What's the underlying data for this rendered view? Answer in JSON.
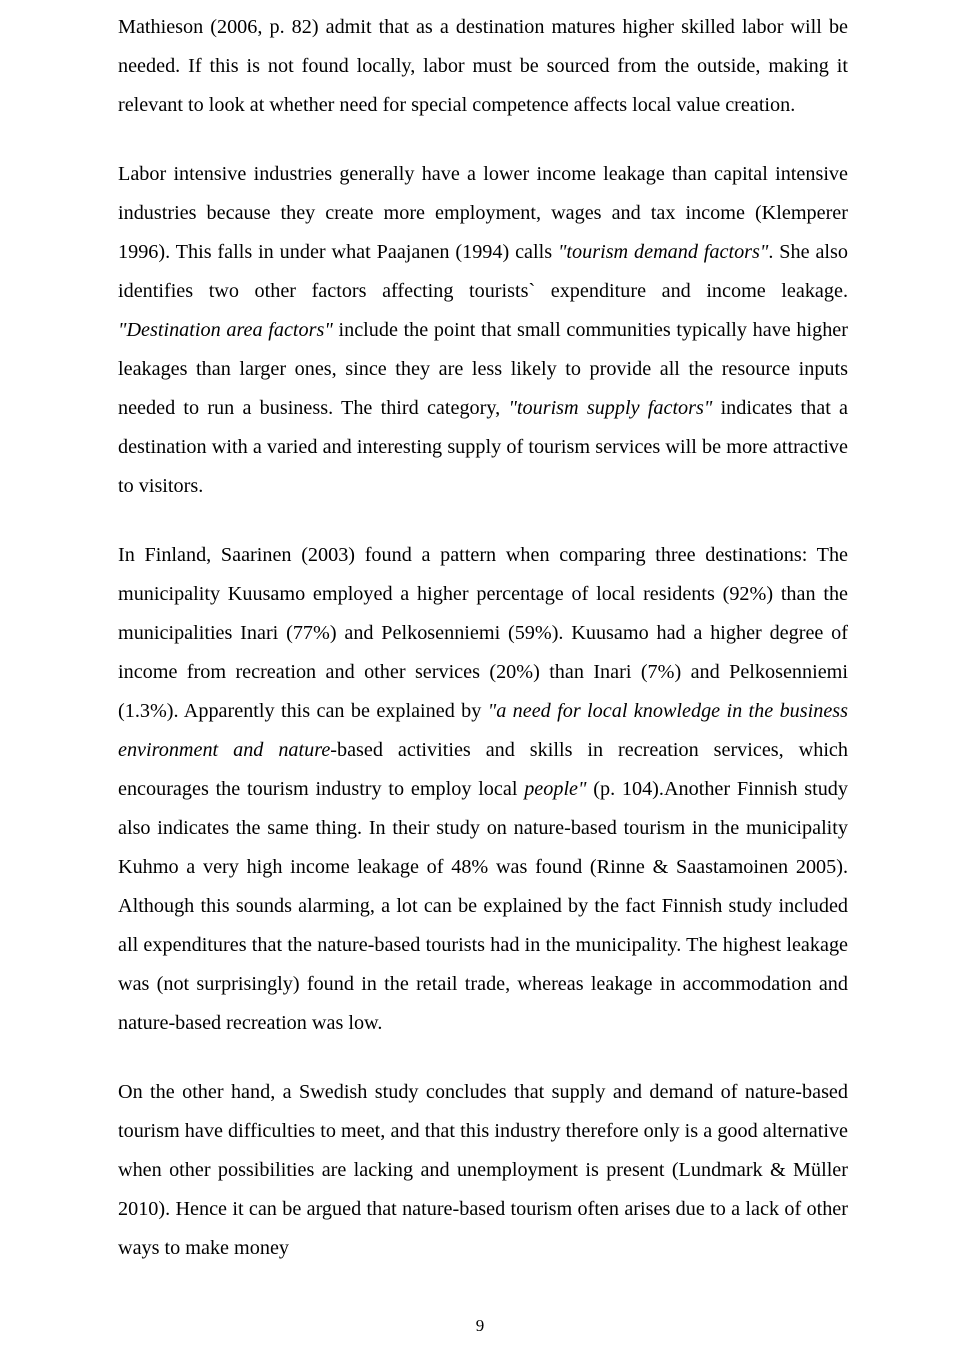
{
  "page": {
    "background_color": "#ffffff",
    "text_color": "#000000",
    "font_family": "Times New Roman",
    "body_font_size_pt": 15,
    "line_height": 1.93,
    "page_number": "9"
  },
  "paragraphs": {
    "p1a": "Mathieson (2006, p. 82) admit that as a destination matures higher skilled labor will be needed. If this is not found locally, labor must be sourced from the outside, making it relevant to look at whether need for special competence affects local value creation.",
    "p2a": "Labor intensive industries generally have a lower income leakage than capital intensive industries because they create more employment, wages and tax income (Klemperer 1996). This falls in under what Paajanen (1994) calls ",
    "p2i1": "\"tourism demand factors\"",
    "p2b": ". She also identifies two other factors affecting tourists` expenditure and income leakage. ",
    "p2i2": "\"Destination area factors\"",
    "p2c": " include the point that small communities typically have higher leakages than larger ones, since they are less likely to provide all the resource inputs needed to run a business. The third category, ",
    "p2i3": "\"tourism supply factors\"",
    "p2d": " indicates that a destination with a varied and interesting supply of tourism services will be more attractive to visitors.",
    "p3a": "In Finland, Saarinen (2003) found a pattern when comparing three destinations: The municipality Kuusamo employed a higher percentage of local residents (92%) than the municipalities Inari (77%) and Pelkosenniemi (59%). Kuusamo had a higher degree of income from recreation and other services (20%) than Inari (7%) and Pelkosenniemi (1.3%).  Apparently this can be explained by ",
    "p3i1": "\"a need for local knowledge in the business environment and nature-",
    "p3b": "based activities and skills in recreation services, which encourages the tourism industry to employ local ",
    "p3i2": "people\"",
    "p3c": " (p. 104).Another Finnish study also indicates the same thing. In their study on nature-based tourism in the municipality Kuhmo a very high income  leakage of 48% was found (Rinne & Saastamoinen 2005). Although this sounds alarming, a lot can be explained by the fact Finnish study included all expenditures that the nature-based tourists had in the municipality. The highest leakage was (not surprisingly) found in the retail trade, whereas leakage in accommodation and nature-based recreation was low.",
    "p4a": "On the other hand, a Swedish study concludes that supply and demand of nature-based tourism have difficulties to meet, and that this industry therefore only is a good alternative when other possibilities are lacking and unemployment is present (Lundmark & Müller 2010). Hence it can be argued that nature-based tourism often arises due to a lack of other ways to make money"
  }
}
